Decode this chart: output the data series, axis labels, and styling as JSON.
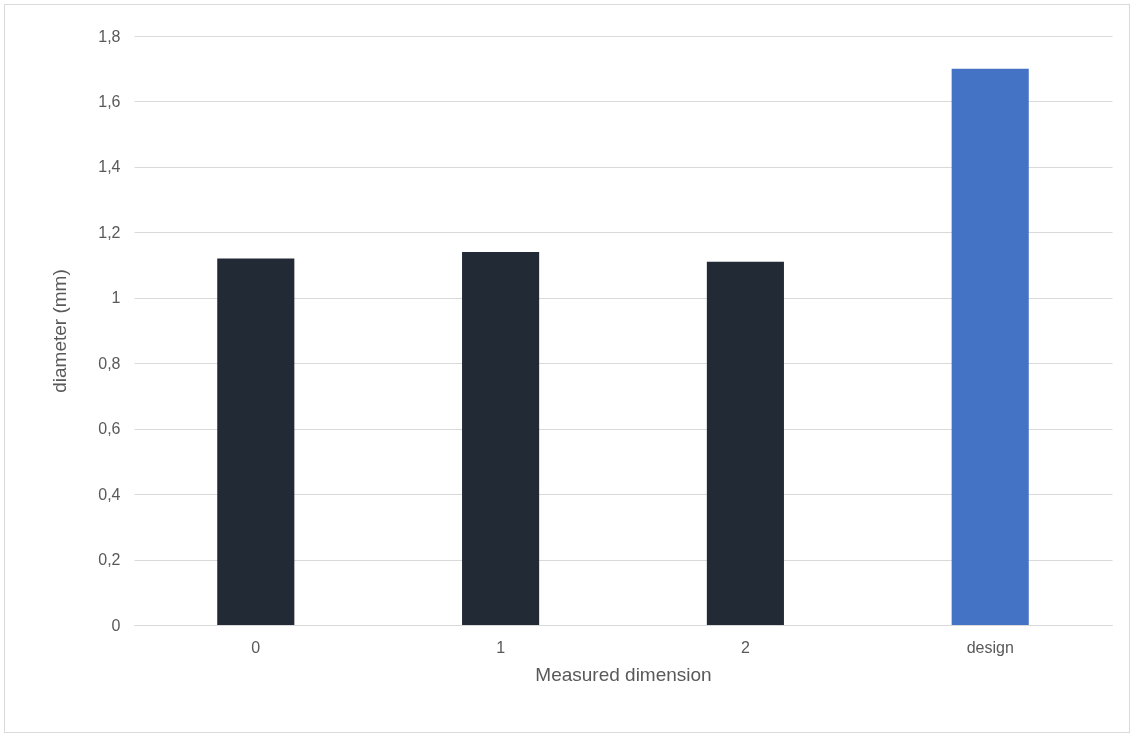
{
  "chart_data": {
    "type": "bar",
    "xlabel": "Measured dimension",
    "ylabel": "diameter (mm)",
    "categories": [
      "0",
      "1",
      "2",
      "design"
    ],
    "values": [
      1.12,
      1.14,
      1.11,
      1.7
    ],
    "colors": [
      "#222a35",
      "#222a35",
      "#222a35",
      "#4472c4"
    ],
    "ylim": [
      0,
      1.8
    ],
    "yticks": [
      0,
      {
        "value": 0.2,
        "label": "0,2"
      },
      {
        "value": 0.4,
        "label": "0,4"
      },
      {
        "value": 0.6,
        "label": "0,6"
      },
      {
        "value": 0.8,
        "label": "0,8"
      },
      1,
      {
        "value": 1.2,
        "label": "1,2"
      },
      {
        "value": 1.4,
        "label": "1,4"
      },
      {
        "value": 1.6,
        "label": "1,6"
      },
      {
        "value": 1.8,
        "label": "1,8"
      }
    ],
    "grid": "y",
    "legend": false
  }
}
